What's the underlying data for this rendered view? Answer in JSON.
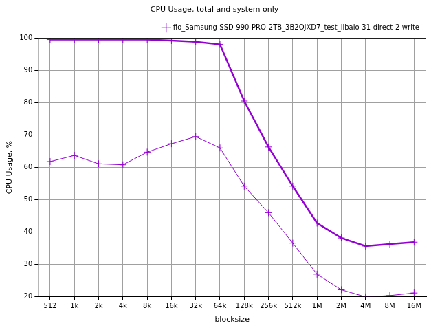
{
  "chart_data": {
    "type": "line",
    "title": "CPU Usage, total and system only",
    "x_label": "blocksize",
    "y_label": "CPU Usage, %",
    "categories": [
      "512",
      "1k",
      "2k",
      "4k",
      "8k",
      "16k",
      "32k",
      "64k",
      "128k",
      "256k",
      "512k",
      "1M",
      "2M",
      "4M",
      "8M",
      "16M"
    ],
    "series": [
      {
        "name": "fio_Samsung-SSD-990-PRO-2TB_3B2QJXD7_test_libaio-31-direct-2-write",
        "color": "#9400d3",
        "marker": "plus",
        "values": [
          99.5,
          99.5,
          99.5,
          99.5,
          99.5,
          99.2,
          98.8,
          98.0,
          80.5,
          66.3,
          54.2,
          42.8,
          38.2,
          35.7,
          36.3,
          36.9
        ]
      },
      {
        "color": "#9400d3",
        "marker": "plus",
        "values": [
          61.8,
          63.7,
          61.1,
          60.8,
          64.7,
          67.3,
          69.5,
          66.0,
          54.2,
          46.0,
          36.6,
          27.0,
          22.2,
          20.0,
          20.4,
          21.2
        ]
      }
    ],
    "ylim": [
      20,
      100
    ],
    "yticks": [
      20,
      30,
      40,
      50,
      60,
      70,
      80,
      90,
      100
    ],
    "grid": true,
    "legend": "top-right"
  }
}
